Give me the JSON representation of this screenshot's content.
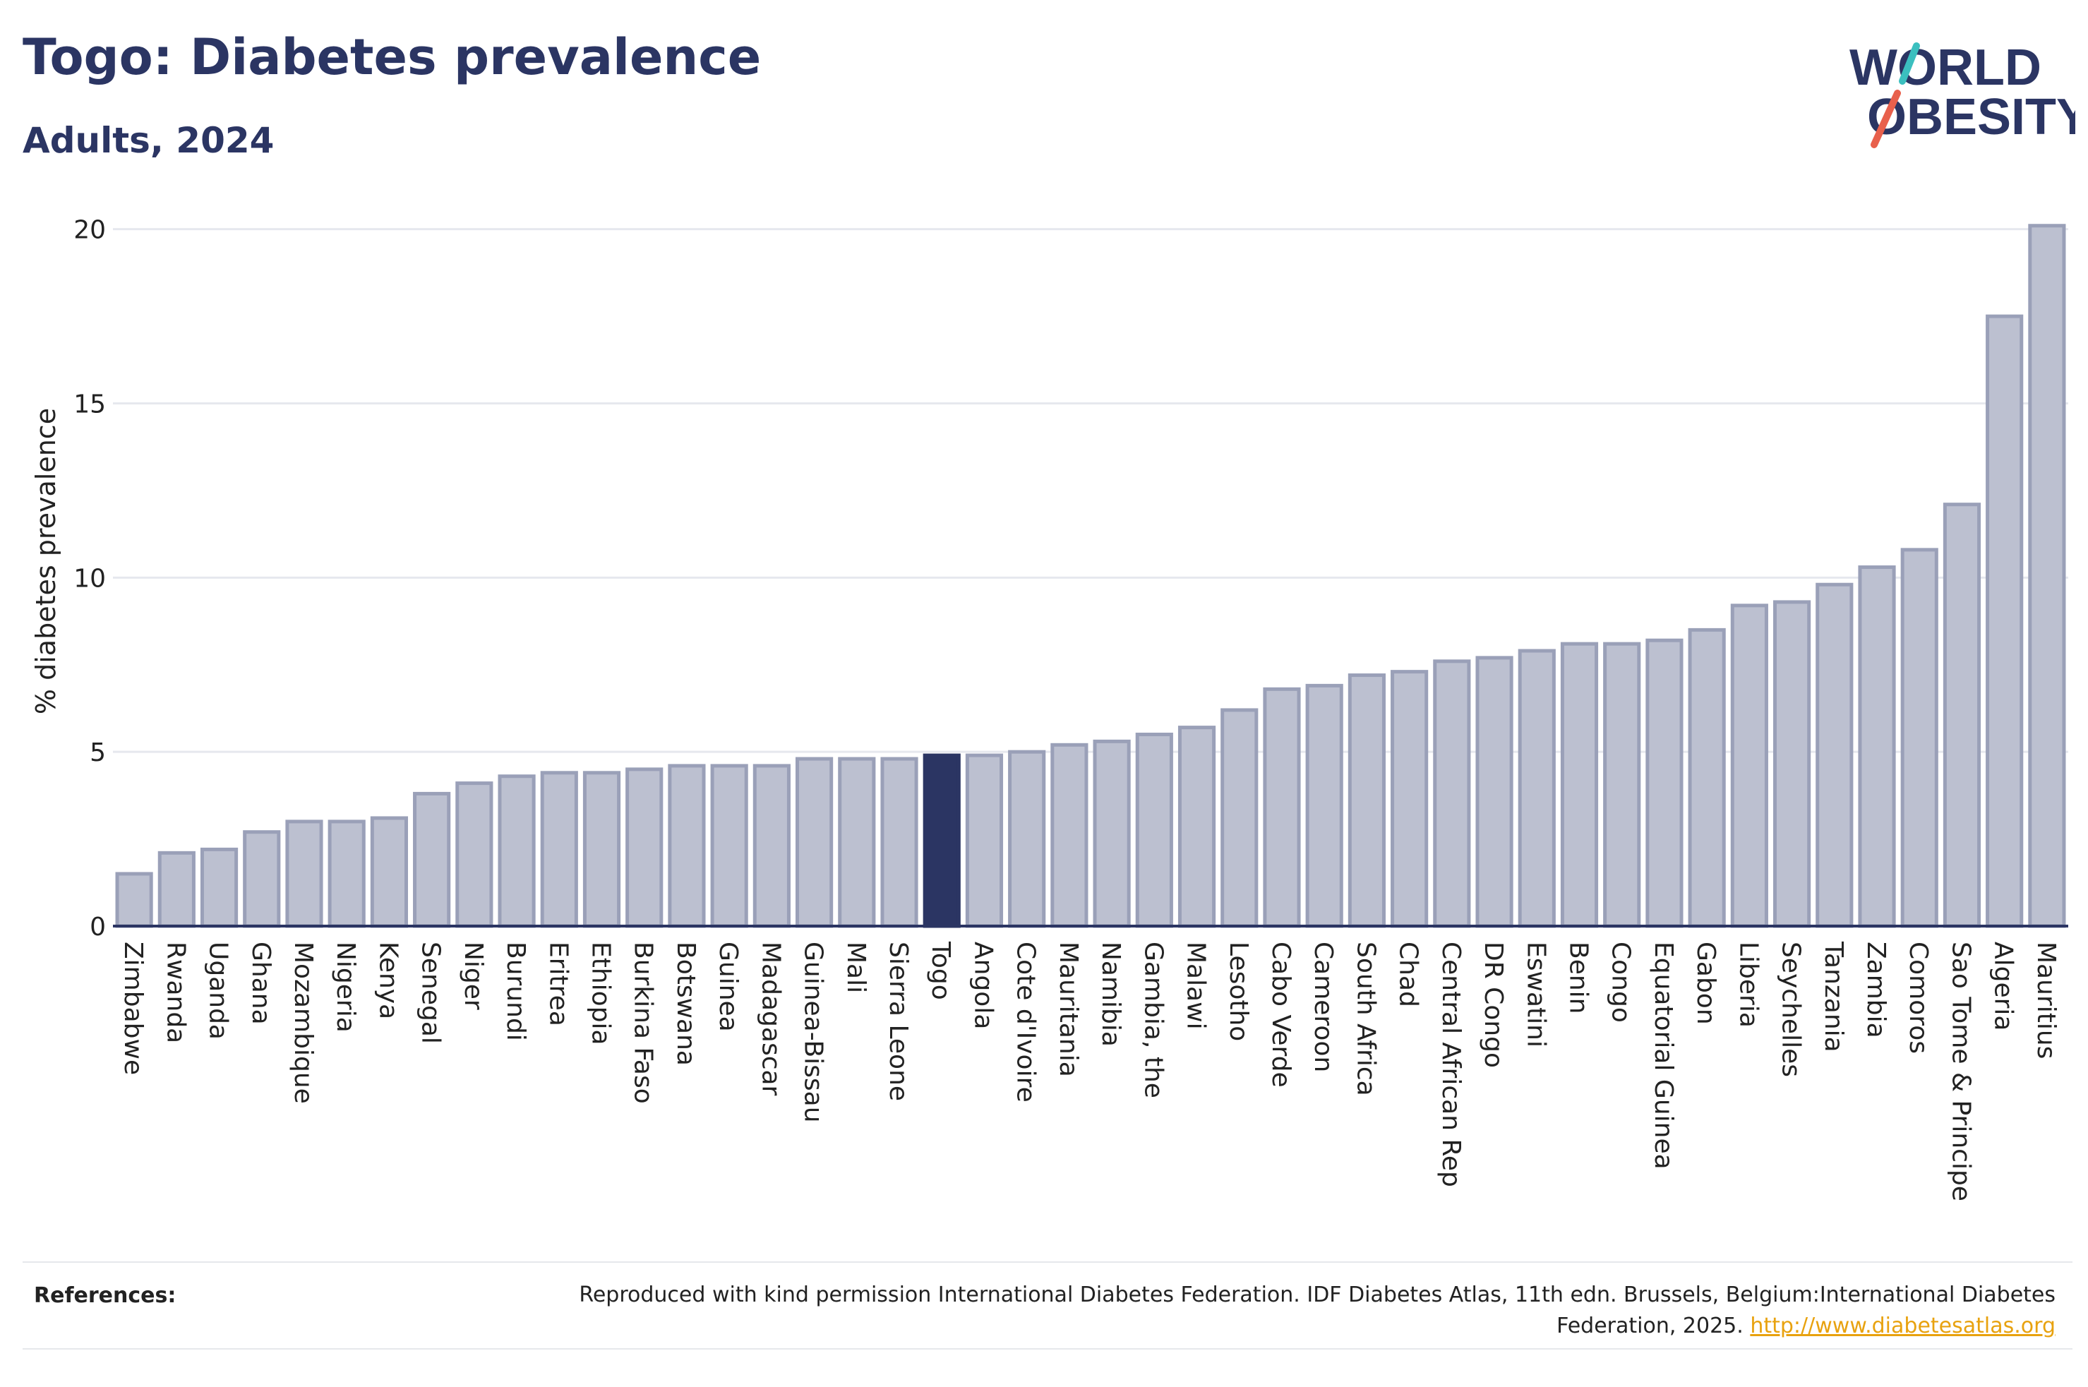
{
  "header": {
    "title": "Togo: Diabetes prevalence",
    "subtitle": "Adults, 2024"
  },
  "logo": {
    "line1": "WORLD",
    "line2": "OBESITY",
    "accent_teal": "#3bbfbf",
    "accent_coral": "#e8604c"
  },
  "chart_data": {
    "type": "bar",
    "title": "Togo: Diabetes prevalence",
    "subtitle": "Adults, 2024",
    "xlabel": "",
    "ylabel": "% diabetes prevalence",
    "ylim": [
      0,
      20.5
    ],
    "yticks": [
      0,
      5,
      10,
      15,
      20
    ],
    "grid": true,
    "highlight": "Togo",
    "colors": {
      "bar": "#bcc0d0",
      "bar_border": "#9aa0b8",
      "highlight": "#2b3563",
      "axis": "#2b3563",
      "grid": "#e6e8ee"
    },
    "categories": [
      "Zimbabwe",
      "Rwanda",
      "Uganda",
      "Ghana",
      "Mozambique",
      "Nigeria",
      "Kenya",
      "Senegal",
      "Niger",
      "Burundi",
      "Eritrea",
      "Ethiopia",
      "Burkina Faso",
      "Botswana",
      "Guinea",
      "Madagascar",
      "Guinea-Bissau",
      "Mali",
      "Sierra Leone",
      "Togo",
      "Angola",
      "Cote d'Ivoire",
      "Mauritania",
      "Namibia",
      "Gambia, the",
      "Malawi",
      "Lesotho",
      "Cabo Verde",
      "Cameroon",
      "South Africa",
      "Chad",
      "Central African Rep",
      "DR Congo",
      "Eswatini",
      "Benin",
      "Congo",
      "Equatorial Guinea",
      "Gabon",
      "Liberia",
      "Seychelles",
      "Tanzania",
      "Zambia",
      "Comoros",
      "Sao Tome & Principe",
      "Algeria",
      "Mauritius"
    ],
    "values": [
      1.5,
      2.1,
      2.2,
      2.7,
      3.0,
      3.0,
      3.1,
      3.8,
      4.1,
      4.3,
      4.4,
      4.4,
      4.5,
      4.6,
      4.6,
      4.6,
      4.8,
      4.8,
      4.8,
      4.9,
      4.9,
      5.0,
      5.2,
      5.3,
      5.5,
      5.7,
      6.2,
      6.8,
      6.9,
      7.2,
      7.3,
      7.6,
      7.7,
      7.9,
      8.1,
      8.1,
      8.2,
      8.5,
      9.2,
      9.3,
      9.8,
      10.3,
      10.8,
      12.1,
      17.5,
      20.1
    ]
  },
  "references": {
    "label": "References:",
    "text": "Reproduced with kind permission International Diabetes Federation. IDF Diabetes Atlas, 11th edn. Brussels, Belgium:International Diabetes Federation, 2025.",
    "link": "http://www.diabetesatlas.org"
  }
}
